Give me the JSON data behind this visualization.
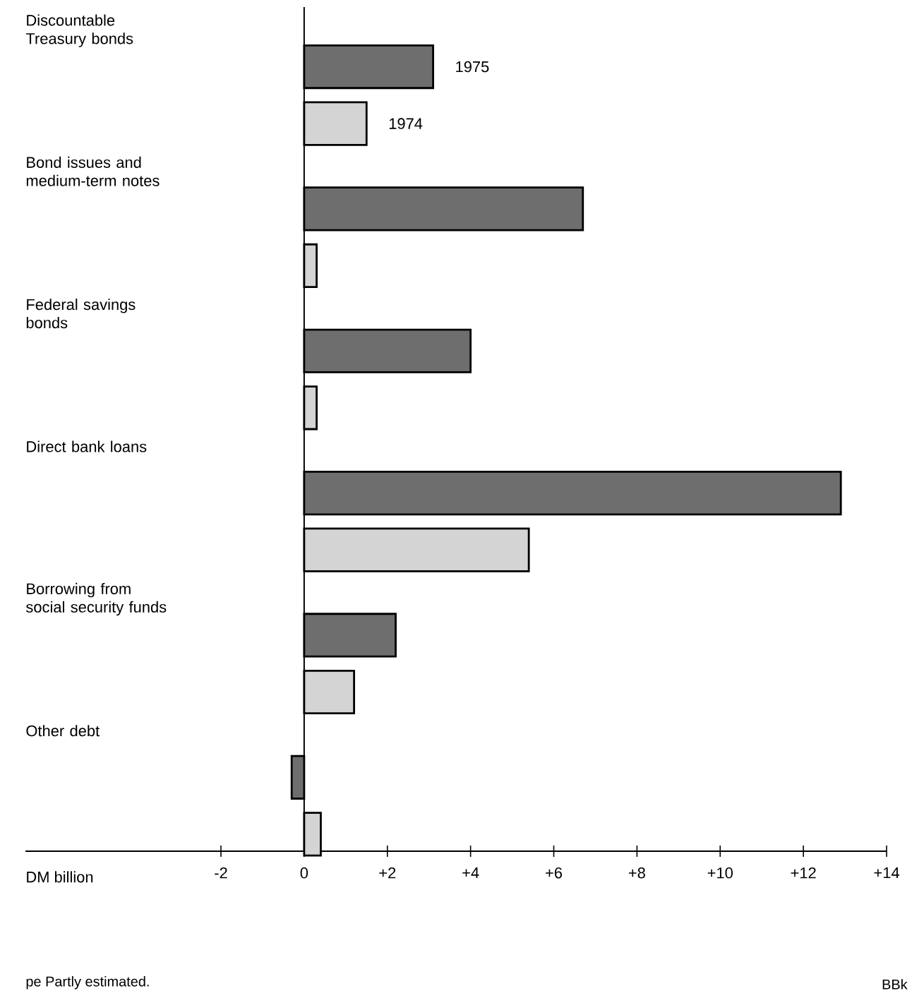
{
  "chart_data": {
    "type": "bar",
    "orientation": "horizontal",
    "categories": [
      "Discountable Treasury bonds",
      "Bond issues and medium-term notes",
      "Federal savings bonds",
      "Direct bank loans",
      "Borrowing from social security funds",
      "Other debt"
    ],
    "series": [
      {
        "name": "1975",
        "color": "#6e6e6e",
        "values": [
          3.1,
          6.7,
          4.0,
          12.9,
          2.2,
          -0.3
        ]
      },
      {
        "name": "1974",
        "color": "#d4d4d4",
        "values": [
          1.5,
          0.3,
          0.3,
          5.4,
          1.2,
          0.4
        ]
      }
    ],
    "xlabel": "DM billion",
    "xlim": [
      -6.7,
      14
    ],
    "xticks": [
      -2,
      0,
      {
        "value": 2,
        "label": "+2"
      },
      {
        "value": 4,
        "label": "+4"
      },
      {
        "value": 6,
        "label": "+6"
      },
      {
        "value": 8,
        "label": "+8"
      },
      {
        "value": 10,
        "label": "+10"
      },
      {
        "value": 12,
        "label": "+12"
      },
      {
        "value": 14,
        "label": "+14"
      }
    ],
    "annotations": [
      "pe  Partly estimated.",
      "BBk"
    ],
    "legend": false
  }
}
